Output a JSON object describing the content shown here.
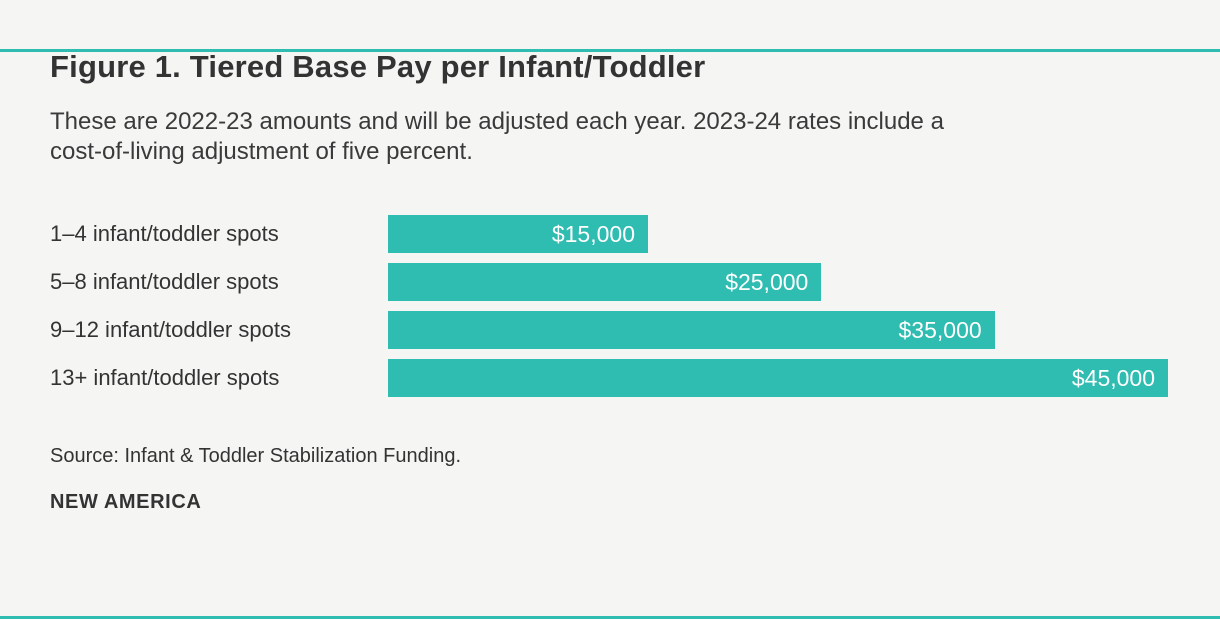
{
  "page": {
    "background_color": "#f5f5f3",
    "accent_color": "#2fbcb1",
    "text_color": "#333333"
  },
  "header": {
    "subtitle_lines": [
      "These are 2022-23 amounts and will be adjusted each year. 2023-24 rates include a",
      "cost-of-living adjustment of five percent."
    ]
  },
  "chart_data": {
    "type": "bar",
    "orientation": "horizontal",
    "title": "Figure 1. Tiered Base Pay per Infant/Toddler",
    "subtitle": "These are 2022-23 amounts and will be adjusted each year. 2023-24 rates include a cost-of-living adjustment of five percent.",
    "categories": [
      "1–4 infant/toddler spots",
      "5–8 infant/toddler spots",
      "9–12 infant/toddler spots",
      "13+ infant/toddler spots"
    ],
    "values": [
      15000,
      25000,
      35000,
      45000
    ],
    "value_labels": [
      "$15,000",
      "$25,000",
      "$35,000",
      "$45,000"
    ],
    "xlim": [
      0,
      45000
    ],
    "grid": false,
    "legend": false,
    "bar_color": "#2fbcb1",
    "value_label_color": "#ffffff",
    "value_label_position": "inside-end"
  },
  "footer": {
    "source": "Source: Infant & Toddler Stabilization Funding.",
    "brand": "NEW AMERICA"
  }
}
